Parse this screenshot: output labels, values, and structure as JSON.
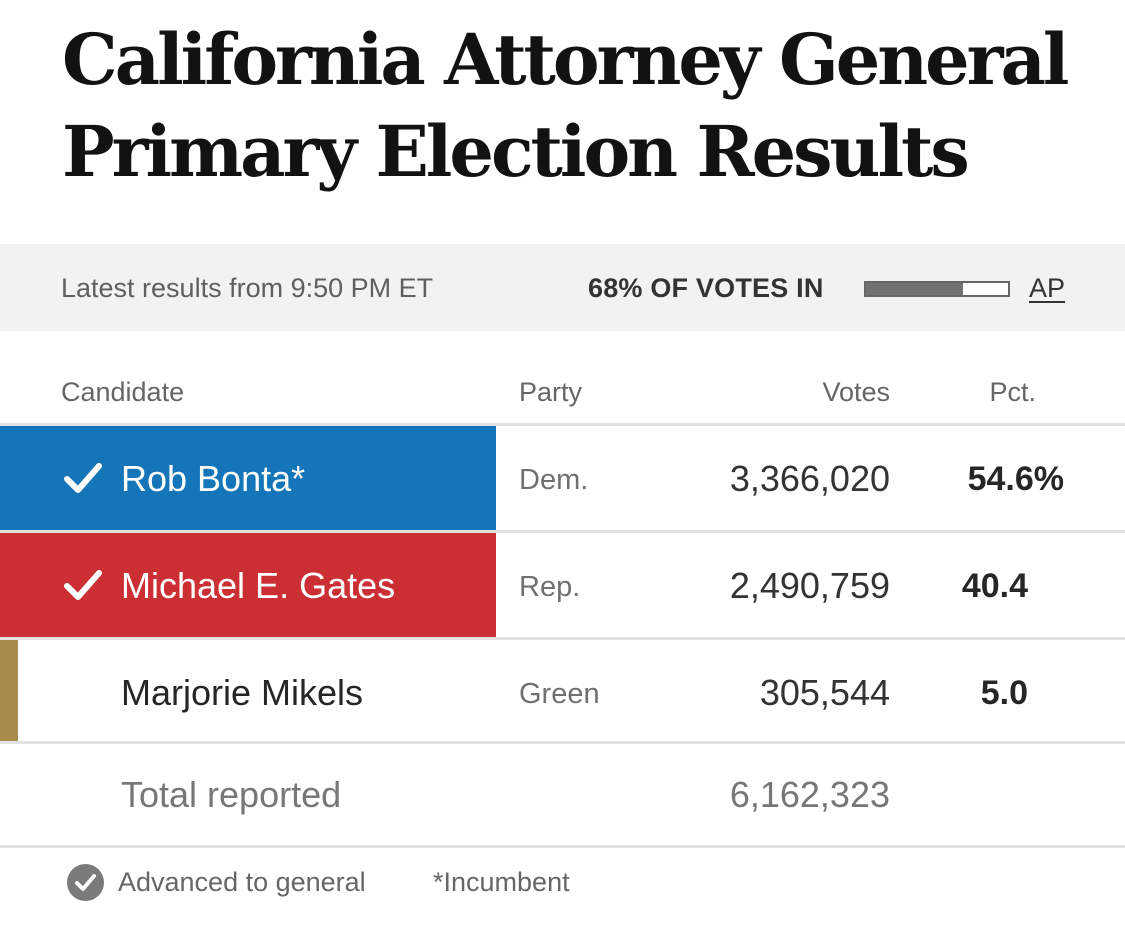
{
  "title": "California Attorney General Primary Election Results",
  "status": {
    "time_text": "Latest results from 9:50 PM ET",
    "reporting_text": "68% OF VOTES IN",
    "reporting_fraction": 0.68,
    "source": "AP"
  },
  "columns": {
    "candidate": "Candidate",
    "party": "Party",
    "votes": "Votes",
    "pct": "Pct."
  },
  "candidates": [
    {
      "name": "Rob Bonta*",
      "party": "Dem.",
      "votes": "3,366,020",
      "pct": "54.6%",
      "advanced": true,
      "color": "#1575b9"
    },
    {
      "name": "Michael E. Gates",
      "party": "Rep.",
      "votes": "2,490,759",
      "pct": "40.4",
      "advanced": true,
      "color": "#cc2f33"
    },
    {
      "name": "Marjorie Mikels",
      "party": "Green",
      "votes": "305,544",
      "pct": "5.0",
      "advanced": false,
      "color": "#a88c4e"
    }
  ],
  "total": {
    "label": "Total reported",
    "votes": "6,162,323"
  },
  "legend": {
    "advanced_icon": "check-circle-icon",
    "advanced_label": "Advanced to general",
    "incumbent_label": "*Incumbent"
  }
}
